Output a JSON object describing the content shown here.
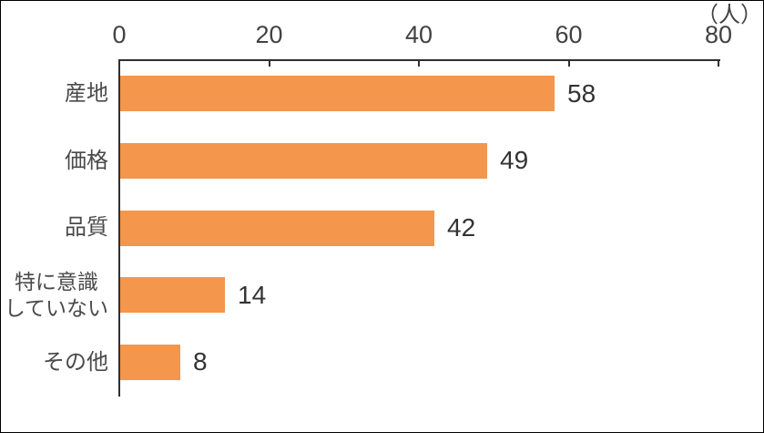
{
  "chart_data": {
    "type": "bar",
    "orientation": "horizontal",
    "title": "",
    "unit_label": "（人）",
    "xlabel": "",
    "ylabel": "",
    "xlim": [
      0,
      80
    ],
    "x_ticks": [
      0,
      20,
      40,
      60,
      80
    ],
    "grid": false,
    "legend": false,
    "bar_color": "#F4964B",
    "axis_color": "#2f2f2f",
    "categories": [
      "産地",
      "価格",
      "品質",
      "特に意識していない",
      "その他"
    ],
    "values": [
      58,
      49,
      42,
      14,
      8
    ],
    "items": [
      {
        "lines": [
          "産地"
        ],
        "value": 58
      },
      {
        "lines": [
          "価格"
        ],
        "value": 49
      },
      {
        "lines": [
          "品質"
        ],
        "value": 42
      },
      {
        "lines": [
          "特に意識",
          "していない"
        ],
        "value": 14
      },
      {
        "lines": [
          "その他"
        ],
        "value": 8
      }
    ]
  }
}
